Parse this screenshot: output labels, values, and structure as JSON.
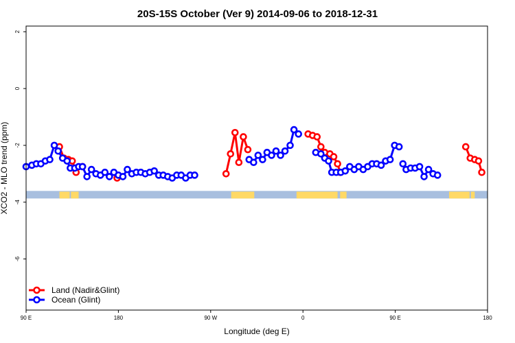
{
  "chart_data": {
    "type": "line",
    "title": "20S-15S October (Ver 9)   2014-09-06 to 2018-12-31",
    "xlabel": "Longitude (deg E)",
    "ylabel": "XCO2 - MLO trend (ppm)",
    "xlim": [
      90,
      450
    ],
    "ylim": [
      -7.8,
      2.2
    ],
    "x_ticks": [
      {
        "value": 90,
        "label": "90 E"
      },
      {
        "value": 162,
        "label": "180"
      },
      {
        "value": 234,
        "label": "90 W"
      },
      {
        "value": 306,
        "label": "0"
      },
      {
        "value": 378,
        "label": "90 E"
      },
      {
        "value": 450,
        "label": "180"
      }
    ],
    "y_ticks": [
      {
        "value": 2,
        "label": "2"
      },
      {
        "value": 0,
        "label": "0"
      },
      {
        "value": -2,
        "label": "-2"
      },
      {
        "value": -4,
        "label": "-4"
      },
      {
        "value": -6,
        "label": "-6"
      }
    ],
    "grid": false,
    "legend": "bottom-left",
    "series": [
      {
        "name": "Land (Nadir&Glint)",
        "color": "#ff0000",
        "segments": [
          [
            [
              116,
              -2.05
            ],
            [
              119.5,
              -2.45
            ],
            [
              123,
              -2.5
            ],
            [
              126,
              -2.55
            ],
            [
              129,
              -2.95
            ]
          ],
          [
            [
              134,
              -2.75
            ]
          ],
          [
            [
              161,
              -3.15
            ]
          ],
          [
            [
              246,
              -3.0
            ],
            [
              249.5,
              -2.3
            ],
            [
              253,
              -1.55
            ],
            [
              256,
              -2.6
            ],
            [
              259.5,
              -1.7
            ],
            [
              263,
              -2.15
            ]
          ],
          [
            [
              310,
              -1.6
            ],
            [
              313.5,
              -1.65
            ],
            [
              317,
              -1.7
            ],
            [
              320,
              -2.05
            ],
            [
              323,
              -2.25
            ],
            [
              327,
              -2.3
            ],
            [
              330,
              -2.4
            ],
            [
              333,
              -2.65
            ],
            [
              335,
              -2.95
            ]
          ],
          [
            [
              433,
              -2.05
            ],
            [
              436.5,
              -2.45
            ],
            [
              440,
              -2.5
            ],
            [
              443,
              -2.55
            ],
            [
              445.5,
              -2.95
            ]
          ]
        ]
      },
      {
        "name": "Ocean (Glint)",
        "color": "#0000ff",
        "segments": [
          [
            [
              90,
              -2.75
            ],
            [
              94.5,
              -2.7
            ],
            [
              98,
              -2.65
            ],
            [
              101.5,
              -2.65
            ],
            [
              105,
              -2.55
            ],
            [
              108.5,
              -2.5
            ],
            [
              112,
              -2.0
            ],
            [
              115,
              -2.2
            ],
            [
              118.5,
              -2.45
            ],
            [
              122,
              -2.55
            ],
            [
              124.5,
              -2.8
            ],
            [
              128,
              -2.8
            ],
            [
              131,
              -2.75
            ],
            [
              134,
              -2.75
            ],
            [
              137.5,
              -3.1
            ],
            [
              141,
              -2.85
            ],
            [
              144.5,
              -3.0
            ],
            [
              148,
              -3.05
            ],
            [
              151.5,
              -2.95
            ],
            [
              155,
              -3.1
            ],
            [
              158.5,
              -2.95
            ],
            [
              162,
              -3.05
            ],
            [
              165.5,
              -3.1
            ],
            [
              169,
              -2.85
            ],
            [
              172.5,
              -3.0
            ],
            [
              176,
              -2.95
            ],
            [
              179.5,
              -2.95
            ],
            [
              183,
              -3.0
            ],
            [
              186.5,
              -2.95
            ],
            [
              190,
              -2.9
            ],
            [
              193.5,
              -3.05
            ],
            [
              197,
              -3.05
            ],
            [
              200.5,
              -3.1
            ],
            [
              204,
              -3.15
            ],
            [
              207.5,
              -3.05
            ],
            [
              211,
              -3.05
            ],
            [
              214.5,
              -3.15
            ],
            [
              218,
              -3.05
            ],
            [
              221.5,
              -3.05
            ]
          ],
          [
            [
              264,
              -2.5
            ],
            [
              267.5,
              -2.6
            ],
            [
              271,
              -2.35
            ],
            [
              274.5,
              -2.5
            ],
            [
              278,
              -2.25
            ],
            [
              281.5,
              -2.35
            ],
            [
              285,
              -2.2
            ],
            [
              288.5,
              -2.35
            ],
            [
              292,
              -2.2
            ],
            [
              296,
              -2.0
            ],
            [
              299,
              -1.45
            ],
            [
              302.5,
              -1.6
            ]
          ],
          [
            [
              316,
              -2.25
            ],
            [
              320,
              -2.3
            ],
            [
              323,
              -2.45
            ],
            [
              326,
              -2.55
            ],
            [
              328.5,
              -2.95
            ],
            [
              332,
              -2.95
            ],
            [
              335.5,
              -2.95
            ],
            [
              339,
              -2.9
            ],
            [
              342.5,
              -2.75
            ],
            [
              346,
              -2.85
            ],
            [
              349.5,
              -2.75
            ],
            [
              353,
              -2.85
            ],
            [
              356.5,
              -2.75
            ],
            [
              360,
              -2.65
            ],
            [
              363.5,
              -2.65
            ],
            [
              367,
              -2.7
            ],
            [
              370.5,
              -2.55
            ],
            [
              374,
              -2.5
            ],
            [
              377.5,
              -2.0
            ],
            [
              381,
              -2.05
            ]
          ],
          [
            [
              384,
              -2.65
            ],
            [
              386.5,
              -2.85
            ],
            [
              390,
              -2.8
            ],
            [
              393.5,
              -2.8
            ],
            [
              397,
              -2.75
            ],
            [
              400.5,
              -3.1
            ],
            [
              404,
              -2.85
            ],
            [
              407.5,
              -3.0
            ],
            [
              411,
              -3.05
            ]
          ]
        ]
      }
    ],
    "surface_band": {
      "y": -3.75,
      "land_color": "#ffd966",
      "ocean_color": "#a8bfdf",
      "land_ranges": [
        [
          116,
          124
        ],
        [
          125,
          131
        ],
        [
          250,
          268
        ],
        [
          301,
          333
        ],
        [
          335,
          340
        ],
        [
          420,
          436
        ],
        [
          437,
          440
        ]
      ]
    }
  }
}
